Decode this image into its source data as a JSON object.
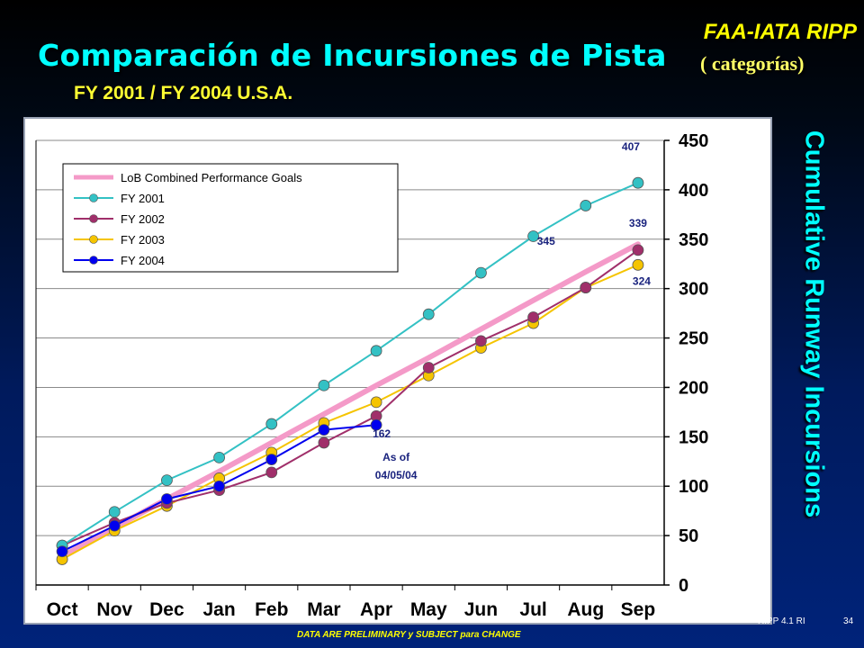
{
  "header": {
    "brand": "FAA-IATA RIPP",
    "title": "Comparación de Incursiones de Pista",
    "title_tag": "( categorías)",
    "subtitle": "FY 2001 / FY 2004 U.S.A.",
    "side_label": "Cumulative Runway Incursions"
  },
  "footer": {
    "note": "DATA ARE PRELIMINARY y SUBJECT para CHANGE",
    "code": "RIPP 4.1 RI",
    "page": "34"
  },
  "chart_data": {
    "type": "line",
    "categories": [
      "Oct",
      "Nov",
      "Dec",
      "Jan",
      "Feb",
      "Mar",
      "Apr",
      "May",
      "Jun",
      "Jul",
      "Aug",
      "Sep"
    ],
    "ylim": [
      0,
      450
    ],
    "yticks": [
      0,
      50,
      100,
      150,
      200,
      250,
      300,
      350,
      400,
      450
    ],
    "y_axis_side": "right",
    "grid": true,
    "legend_position": "top-left",
    "colors": {
      "goal": "#f49ac8",
      "fy2001": "#33c1c4",
      "fy2002": "#a02f6a",
      "fy2003": "#f5c400",
      "fy2004": "#0000ee"
    },
    "series": [
      {
        "name": "LoB Combined Performance Goals",
        "key": "goal",
        "line_only": true,
        "values": [
          29,
          58,
          87,
          115,
          144,
          173,
          202,
          230,
          259,
          288,
          317,
          345
        ]
      },
      {
        "name": "FY 2001",
        "key": "fy2001",
        "values": [
          40,
          74,
          106,
          129,
          163,
          202,
          237,
          274,
          316,
          353,
          384,
          407
        ]
      },
      {
        "name": "FY 2002",
        "key": "fy2002",
        "values": [
          40,
          63,
          83,
          96,
          114,
          144,
          171,
          220,
          247,
          271,
          301,
          339
        ]
      },
      {
        "name": "FY 2003",
        "key": "fy2003",
        "values": [
          26,
          55,
          80,
          108,
          134,
          164,
          185,
          212,
          240,
          265,
          301,
          324
        ]
      },
      {
        "name": "FY 2004",
        "key": "fy2004",
        "values": [
          34,
          60,
          87,
          100,
          127,
          157,
          162,
          null,
          null,
          null,
          null,
          null
        ]
      }
    ],
    "annotations": [
      {
        "text": "407",
        "series": "fy2001",
        "category": "Sep"
      },
      {
        "text": "345",
        "series": "goal",
        "category": "Aug"
      },
      {
        "text": "339",
        "series": "fy2002",
        "category": "Sep"
      },
      {
        "text": "324",
        "series": "fy2003",
        "category": "Sep"
      },
      {
        "text": "162",
        "series": "fy2004",
        "category": "Apr"
      },
      {
        "text": "As of",
        "series": "fy2004",
        "category": "Apr"
      },
      {
        "text": "04/05/04",
        "series": "fy2004",
        "category": "Apr"
      }
    ]
  }
}
